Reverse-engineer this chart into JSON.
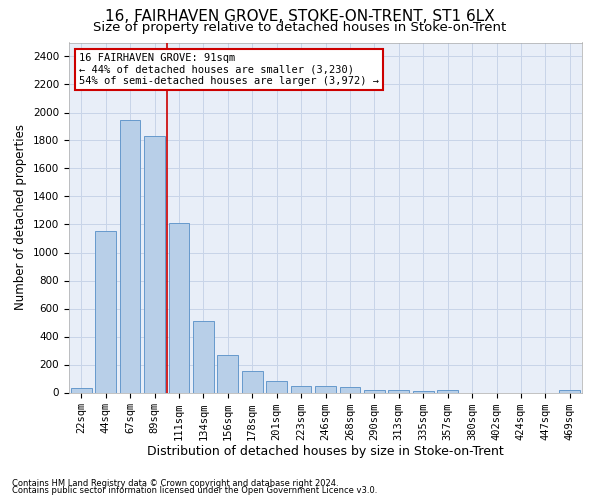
{
  "title": "16, FAIRHAVEN GROVE, STOKE-ON-TRENT, ST1 6LX",
  "subtitle": "Size of property relative to detached houses in Stoke-on-Trent",
  "xlabel": "Distribution of detached houses by size in Stoke-on-Trent",
  "ylabel": "Number of detached properties",
  "footnote1": "Contains HM Land Registry data © Crown copyright and database right 2024.",
  "footnote2": "Contains public sector information licensed under the Open Government Licence v3.0.",
  "bar_labels": [
    "22sqm",
    "44sqm",
    "67sqm",
    "89sqm",
    "111sqm",
    "134sqm",
    "156sqm",
    "178sqm",
    "201sqm",
    "223sqm",
    "246sqm",
    "268sqm",
    "290sqm",
    "313sqm",
    "335sqm",
    "357sqm",
    "380sqm",
    "402sqm",
    "424sqm",
    "447sqm",
    "469sqm"
  ],
  "bar_values": [
    30,
    1150,
    1950,
    1830,
    1210,
    510,
    265,
    155,
    80,
    50,
    45,
    38,
    20,
    20,
    12,
    20,
    0,
    0,
    0,
    0,
    20
  ],
  "bar_color": "#b8cfe8",
  "bar_edge_color": "#6699cc",
  "vline_x": 3.5,
  "vline_color": "#cc0000",
  "annotation_text": "16 FAIRHAVEN GROVE: 91sqm\n← 44% of detached houses are smaller (3,230)\n54% of semi-detached houses are larger (3,972) →",
  "annotation_box_color": "#cc0000",
  "annotation_bg": "#ffffff",
  "ylim": [
    0,
    2500
  ],
  "yticks": [
    0,
    200,
    400,
    600,
    800,
    1000,
    1200,
    1400,
    1600,
    1800,
    2000,
    2200,
    2400
  ],
  "grid_color": "#c8d4e8",
  "bg_color": "#e8eef8",
  "title_fontsize": 11,
  "subtitle_fontsize": 9.5,
  "xlabel_fontsize": 9,
  "ylabel_fontsize": 8.5,
  "annot_fontsize": 7.5,
  "tick_fontsize": 7.5,
  "footnote_fontsize": 6
}
